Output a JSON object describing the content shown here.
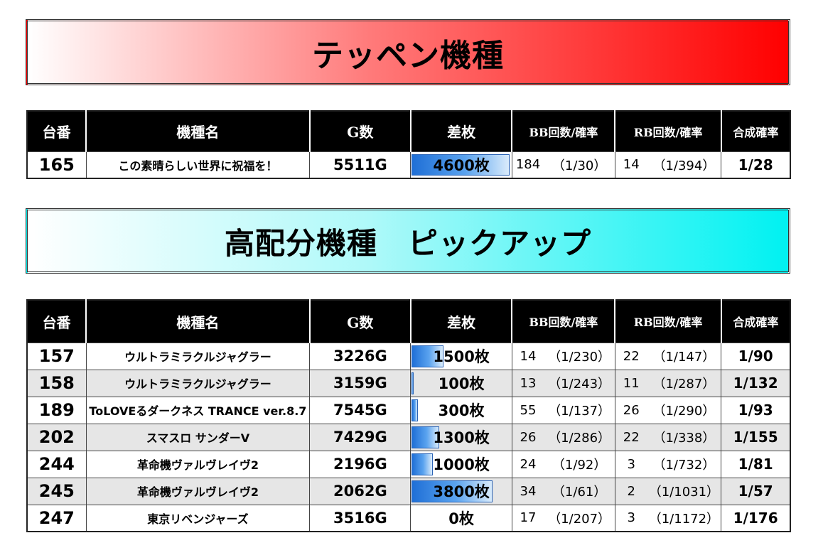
{
  "top_banner": {
    "title": "テッペン機種"
  },
  "pickup_banner": {
    "title": "高配分機種　ピックアップ"
  },
  "headers": {
    "machine_no": "台番",
    "name": "機種名",
    "games": "G数",
    "diff": "差枚",
    "bb": "BB回数/確率",
    "rb": "RB回数/確率",
    "combined": "合成確率"
  },
  "bar_scale_max": 4600,
  "top_rows": [
    {
      "no": "165",
      "name": "この素晴らしい世界に祝福を！",
      "games": "5511G",
      "diff": "4600枚",
      "diff_value": 4600,
      "bb_count": "184",
      "bb_rate": "（1/30）",
      "rb_count": "14",
      "rb_rate": "（1/394）",
      "combined": "1/28"
    }
  ],
  "pickup_rows": [
    {
      "no": "157",
      "name": "ウルトラミラクルジャグラー",
      "games": "3226G",
      "diff": "1500枚",
      "diff_value": 1500,
      "bb_count": "14",
      "bb_rate": "（1/230）",
      "rb_count": "22",
      "rb_rate": "（1/147）",
      "combined": "1/90"
    },
    {
      "no": "158",
      "name": "ウルトラミラクルジャグラー",
      "games": "3159G",
      "diff": "100枚",
      "diff_value": 100,
      "bb_count": "13",
      "bb_rate": "（1/243）",
      "rb_count": "11",
      "rb_rate": "（1/287）",
      "combined": "1/132"
    },
    {
      "no": "189",
      "name": "ToLOVEるダークネス TRANCE ver.8.7",
      "games": "7545G",
      "diff": "300枚",
      "diff_value": 300,
      "bb_count": "55",
      "bb_rate": "（1/137）",
      "rb_count": "26",
      "rb_rate": "（1/290）",
      "combined": "1/93"
    },
    {
      "no": "202",
      "name": "スマスロ サンダーV",
      "games": "7429G",
      "diff": "1300枚",
      "diff_value": 1300,
      "bb_count": "26",
      "bb_rate": "（1/286）",
      "rb_count": "22",
      "rb_rate": "（1/338）",
      "combined": "1/155"
    },
    {
      "no": "244",
      "name": "革命機ヴァルヴレイヴ2",
      "games": "2196G",
      "diff": "1000枚",
      "diff_value": 1000,
      "bb_count": "24",
      "bb_rate": "（1/92）",
      "rb_count": "3",
      "rb_rate": "（1/732）",
      "combined": "1/81"
    },
    {
      "no": "245",
      "name": "革命機ヴァルヴレイヴ2",
      "games": "2062G",
      "diff": "3800枚",
      "diff_value": 3800,
      "bb_count": "34",
      "bb_rate": "（1/61）",
      "rb_count": "2",
      "rb_rate": "（1/1031）",
      "combined": "1/57"
    },
    {
      "no": "247",
      "name": "東京リベンジャーズ",
      "games": "3516G",
      "diff": "0枚",
      "diff_value": 0,
      "bb_count": "17",
      "bb_rate": "（1/207）",
      "rb_count": "3",
      "rb_rate": "（1/1172）",
      "combined": "1/176"
    }
  ]
}
